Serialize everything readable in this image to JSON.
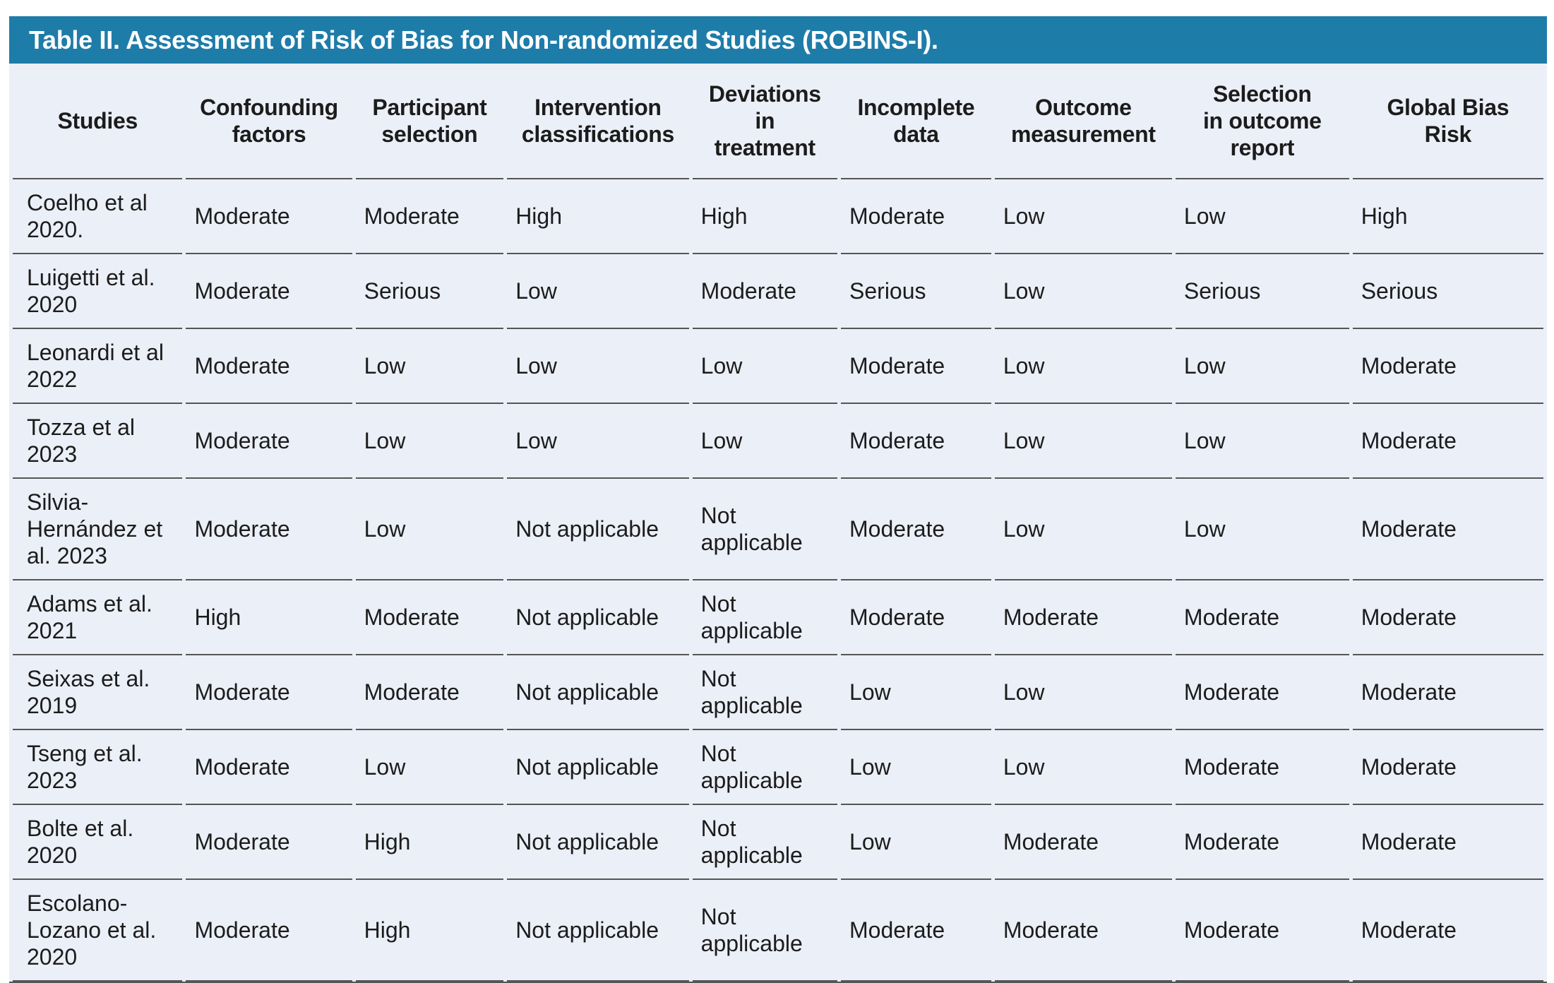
{
  "table": {
    "title": "Table II. Assessment of Risk of Bias for Non-randomized Studies (ROBINS-I).",
    "columns": [
      {
        "id": "studies",
        "label": "Studies"
      },
      {
        "id": "confounding-factors",
        "label": "Confounding\nfactors"
      },
      {
        "id": "participant-selection",
        "label": "Participant\nselection"
      },
      {
        "id": "intervention-classifications",
        "label": "Intervention\nclassifications"
      },
      {
        "id": "deviations-in-treatment",
        "label": "Deviations\nin\ntreatment"
      },
      {
        "id": "incomplete-data",
        "label": "Incomplete\ndata"
      },
      {
        "id": "outcome-measurement",
        "label": "Outcome\nmeasurement"
      },
      {
        "id": "selection-in-outcome-report",
        "label": "Selection\nin outcome\nreport"
      },
      {
        "id": "global-bias-risk",
        "label": "Global Bias\nRisk"
      }
    ],
    "rows": [
      {
        "study": "Coelho et al\n2020.",
        "values": [
          "Moderate",
          "Moderate",
          "High",
          "High",
          "Moderate",
          "Low",
          "Low",
          "High"
        ]
      },
      {
        "study": "Luigetti et al.\n2020",
        "values": [
          "Moderate",
          "Serious",
          "Low",
          "Moderate",
          "Serious",
          "Low",
          "Serious",
          "Serious"
        ]
      },
      {
        "study": "Leonardi et al\n2022",
        "values": [
          "Moderate",
          "Low",
          "Low",
          "Low",
          "Moderate",
          "Low",
          "Low",
          "Moderate"
        ]
      },
      {
        "study": "Tozza et al\n2023",
        "values": [
          "Moderate",
          "Low",
          "Low",
          "Low",
          "Moderate",
          "Low",
          "Low",
          "Moderate"
        ]
      },
      {
        "study": "Silvia-\nHernández et\nal. 2023",
        "values": [
          "Moderate",
          "Low",
          "Not applicable",
          "Not applicable",
          "Moderate",
          "Low",
          "Low",
          "Moderate"
        ]
      },
      {
        "study": "Adams et al.\n2021",
        "values": [
          "High",
          "Moderate",
          "Not applicable",
          "Not applicable",
          "Moderate",
          "Moderate",
          "Moderate",
          "Moderate"
        ]
      },
      {
        "study": "Seixas et al.\n2019",
        "values": [
          "Moderate",
          "Moderate",
          "Not applicable",
          "Not applicable",
          "Low",
          "Low",
          "Moderate",
          "Moderate"
        ]
      },
      {
        "study": "Tseng et al.\n2023",
        "values": [
          "Moderate",
          "Low",
          "Not applicable",
          "Not applicable",
          "Low",
          "Low",
          "Moderate",
          "Moderate"
        ]
      },
      {
        "study": "Bolte et al.\n2020",
        "values": [
          "Moderate",
          "High",
          "Not applicable",
          "Not applicable",
          "Low",
          "Moderate",
          "Moderate",
          "Moderate"
        ]
      },
      {
        "study": "Escolano-\nLozano et al.\n2020",
        "values": [
          "Moderate",
          "High",
          "Not applicable",
          "Not applicable",
          "Moderate",
          "Moderate",
          "Moderate",
          "Moderate"
        ]
      }
    ]
  },
  "colors": {
    "title_bar_background": "#1E7CA9",
    "title_text": "#FFFFFF",
    "table_background": "#EBEFF7",
    "row_line": "#555555",
    "body_text": "#1C1C1C"
  }
}
